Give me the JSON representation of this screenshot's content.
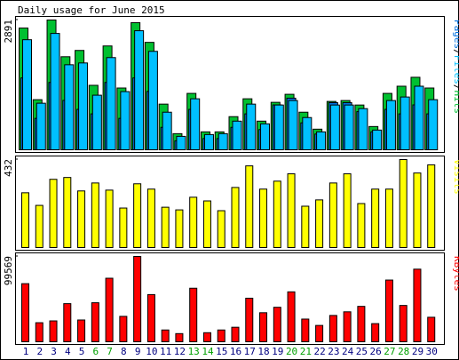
{
  "chart_data": [
    {
      "type": "bar",
      "title": "Daily usage for June 2015",
      "legend_separator": "/",
      "ylim": [
        0,
        2891
      ],
      "yticks": [
        2891
      ],
      "series": [
        {
          "name": "Hits",
          "color": "#00c030",
          "values": [
            2712,
            1116,
            2891,
            2073,
            2213,
            1436,
            2313,
            1376,
            2831,
            2393,
            1017,
            359,
            1256,
            399,
            399,
            738,
            1136,
            638,
            1057,
            1236,
            837,
            459,
            1077,
            1097,
            997,
            518,
            1256,
            1416,
            1615,
            1376
          ]
        },
        {
          "name": "Pages",
          "color": "#0070e0",
          "values": [
            1600,
            700,
            1500,
            1100,
            900,
            800,
            1500,
            700,
            1600,
            1300,
            500,
            200,
            900,
            250,
            250,
            500,
            800,
            450,
            1000,
            1150,
            600,
            350,
            1050,
            1050,
            850,
            400,
            900,
            800,
            1000,
            800
          ]
        },
        {
          "name": "Files",
          "color": "#00c0ff",
          "values": [
            2452,
            1037,
            2592,
            1894,
            1934,
            1216,
            2054,
            1296,
            2652,
            2193,
            837,
            299,
            1136,
            339,
            359,
            638,
            1017,
            578,
            997,
            1097,
            718,
            399,
            997,
            997,
            917,
            439,
            1097,
            1176,
            1416,
            1116
          ]
        }
      ]
    },
    {
      "type": "bar",
      "ylim": [
        0,
        432
      ],
      "yticks": [
        432
      ],
      "series": [
        {
          "name": "Visits",
          "color": "#ffff00",
          "values": [
            269,
            207,
            335,
            344,
            278,
            317,
            282,
            194,
            313,
            287,
            198,
            185,
            247,
            229,
            181,
            295,
            401,
            287,
            326,
            362,
            203,
            234,
            317,
            362,
            216,
            287,
            287,
            432,
            366,
            406
          ]
        }
      ]
    },
    {
      "type": "bar",
      "ylim": [
        0,
        99569
      ],
      "yticks": [
        99569
      ],
      "categories": [
        "1",
        "2",
        "3",
        "4",
        "5",
        "6",
        "7",
        "8",
        "9",
        "10",
        "11",
        "12",
        "13",
        "14",
        "15",
        "16",
        "17",
        "18",
        "19",
        "20",
        "21",
        "22",
        "23",
        "24",
        "25",
        "26",
        "27",
        "28",
        "29",
        "30"
      ],
      "category_colors": [
        "#000080",
        "#000080",
        "#000080",
        "#000080",
        "#000080",
        "#00a000",
        "#00a000",
        "#000080",
        "#000080",
        "#000080",
        "#000080",
        "#000080",
        "#00a000",
        "#00a000",
        "#000080",
        "#000080",
        "#000080",
        "#000080",
        "#000080",
        "#00a000",
        "#00a000",
        "#000080",
        "#000080",
        "#000080",
        "#000080",
        "#000080",
        "#00a000",
        "#00a000",
        "#000080",
        "#000080"
      ],
      "series": [
        {
          "name": "KBytes",
          "color": "#ff0000",
          "values": [
            67792,
            22244,
            24363,
            44488,
            25422,
            45548,
            74147,
            29659,
            99569,
            55081,
            13770,
            9533,
            62495,
            10592,
            13770,
            16948,
            50844,
            33896,
            40251,
            58259,
            26481,
            19066,
            30718,
            34955,
            41311,
            21185,
            72028,
            42370,
            84739,
            28600
          ]
        }
      ]
    }
  ]
}
